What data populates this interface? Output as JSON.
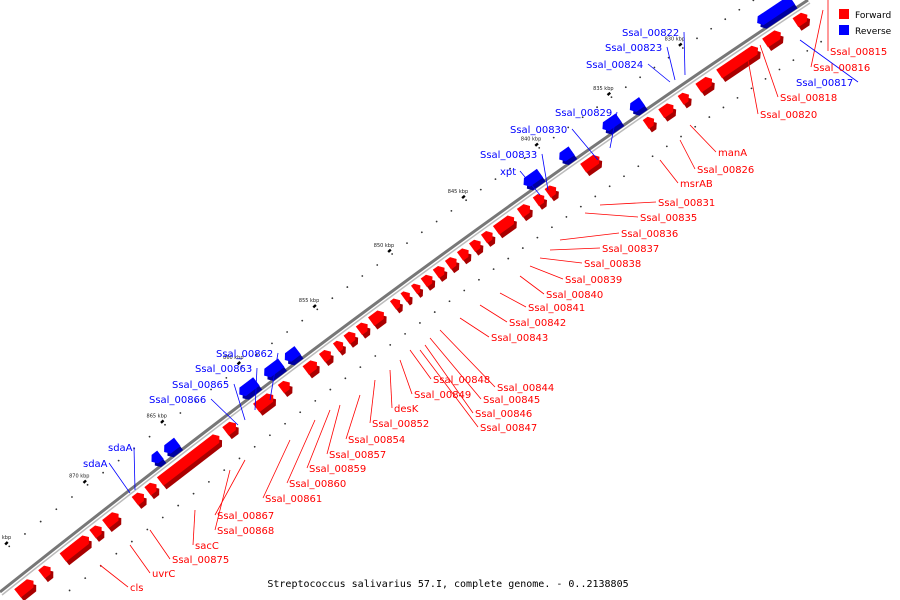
{
  "caption": "Streptococcus salivarius 57.I, complete genome. - 0..2138805",
  "legend": [
    {
      "label": "Forward",
      "color": "#ff0000"
    },
    {
      "label": "Reverse",
      "color": "#0000ff"
    }
  ],
  "colors": {
    "forward": "#ff0000",
    "reverse": "#0000ff",
    "backbone": "#777777"
  },
  "ticks": [
    {
      "label": "825 kbp",
      "pos": 825
    },
    {
      "label": "830 kbp",
      "pos": 830
    },
    {
      "label": "835 kbp",
      "pos": 835
    },
    {
      "label": "840 kbp",
      "pos": 840
    },
    {
      "label": "845 kbp",
      "pos": 845
    },
    {
      "label": "850 kbp",
      "pos": 850
    },
    {
      "label": "855 kbp",
      "pos": 855
    },
    {
      "label": "860 kbp",
      "pos": 860
    },
    {
      "label": "865 kbp",
      "pos": 865
    },
    {
      "label": "870 kbp",
      "pos": 870
    },
    {
      "label": "875 kbp",
      "pos": 875
    }
  ],
  "forward_labels": [
    "Ssal_00815",
    "Ssal_00816",
    "Ssal_00818",
    "Ssal_00820",
    "manA",
    "Ssal_00826",
    "msrAB",
    "Ssal_00831",
    "Ssal_00835",
    "Ssal_00836",
    "Ssal_00837",
    "Ssal_00838",
    "Ssal_00839",
    "Ssal_00840",
    "Ssal_00841",
    "Ssal_00842",
    "Ssal_00843",
    "Ssal_00844",
    "Ssal_00845",
    "Ssal_00846",
    "Ssal_00847",
    "Ssal_00848",
    "Ssal_00849",
    "desK",
    "Ssal_00852",
    "Ssal_00854",
    "Ssal_00857",
    "Ssal_00859",
    "Ssal_00860",
    "Ssal_00861",
    "Ssal_00867",
    "Ssal_00868",
    "sacC",
    "Ssal_00875",
    "uvrC",
    "cls"
  ],
  "reverse_labels": [
    "Ssal_00817",
    "Ssal_00822",
    "Ssal_00823",
    "Ssal_00824",
    "Ssal_00829",
    "Ssal_00830",
    "Ssal_00833",
    "xpt",
    "Ssal_00862",
    "Ssal_00863",
    "Ssal_00865",
    "Ssal_00866",
    "sdaA",
    "sdaA"
  ]
}
